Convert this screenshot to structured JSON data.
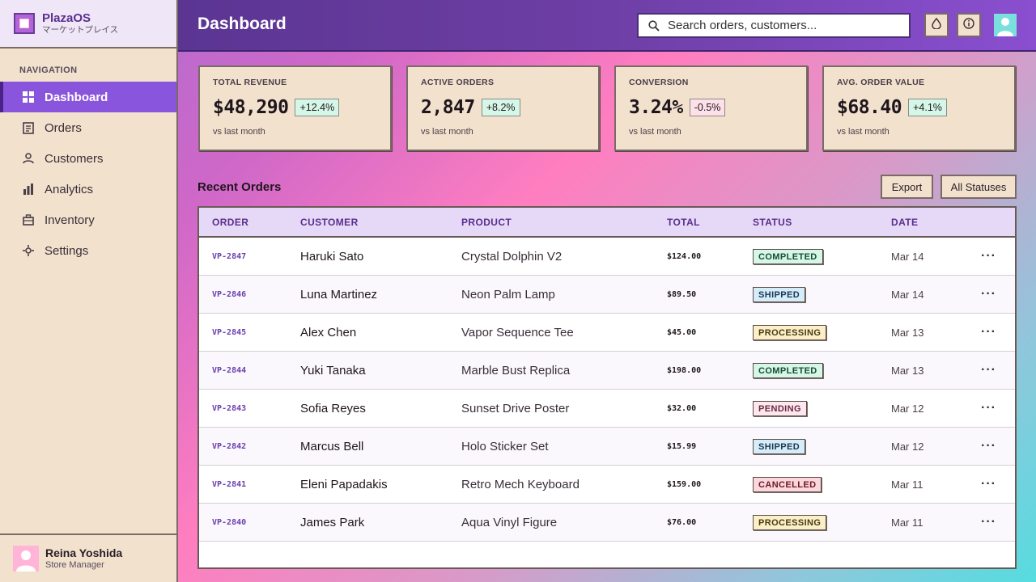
{
  "brand": {
    "name": "PlazaOS",
    "subtitle": "マーケットプレイス"
  },
  "nav": {
    "heading": "NAVIGATION",
    "items": [
      {
        "label": "Dashboard",
        "icon": "grid-icon",
        "active": true
      },
      {
        "label": "Orders",
        "icon": "receipt-icon",
        "active": false
      },
      {
        "label": "Customers",
        "icon": "person-icon",
        "active": false
      },
      {
        "label": "Analytics",
        "icon": "bar-chart-icon",
        "active": false
      },
      {
        "label": "Inventory",
        "icon": "briefcase-icon",
        "active": false
      },
      {
        "label": "Settings",
        "icon": "settings-icon",
        "active": false
      }
    ]
  },
  "user": {
    "name": "Reina Yoshida",
    "role": "Store Manager"
  },
  "header": {
    "title": "Dashboard",
    "search_placeholder": "Search orders, customers...",
    "icons": [
      "droplet-icon",
      "info-icon",
      "user-avatar-icon"
    ]
  },
  "stats": [
    {
      "label": "TOTAL REVENUE",
      "value": "$48,290",
      "delta": "+12.4%",
      "trend": "up",
      "note": "vs last month"
    },
    {
      "label": "ACTIVE ORDERS",
      "value": "2,847",
      "delta": "+8.2%",
      "trend": "up",
      "note": "vs last month"
    },
    {
      "label": "CONVERSION",
      "value": "3.24%",
      "delta": "-0.5%",
      "trend": "down",
      "note": "vs last month"
    },
    {
      "label": "AVG. ORDER VALUE",
      "value": "$68.40",
      "delta": "+4.1%",
      "trend": "up",
      "note": "vs last month"
    }
  ],
  "orders": {
    "title": "Recent Orders",
    "export_label": "Export",
    "filter_label": "All Statuses",
    "columns": [
      "ORDER",
      "CUSTOMER",
      "PRODUCT",
      "TOTAL",
      "STATUS",
      "DATE"
    ],
    "rows": [
      {
        "id": "VP-2847",
        "customer": "Haruki Sato",
        "product": "Crystal Dolphin V2",
        "total": "$124.00",
        "status": "COMPLETED",
        "date": "Mar 14"
      },
      {
        "id": "VP-2846",
        "customer": "Luna Martinez",
        "product": "Neon Palm Lamp",
        "total": "$89.50",
        "status": "SHIPPED",
        "date": "Mar 14"
      },
      {
        "id": "VP-2845",
        "customer": "Alex Chen",
        "product": "Vapor Sequence Tee",
        "total": "$45.00",
        "status": "PROCESSING",
        "date": "Mar 13"
      },
      {
        "id": "VP-2844",
        "customer": "Yuki Tanaka",
        "product": "Marble Bust Replica",
        "total": "$198.00",
        "status": "COMPLETED",
        "date": "Mar 13"
      },
      {
        "id": "VP-2843",
        "customer": "Sofia Reyes",
        "product": "Sunset Drive Poster",
        "total": "$32.00",
        "status": "PENDING",
        "date": "Mar 12"
      },
      {
        "id": "VP-2842",
        "customer": "Marcus Bell",
        "product": "Holo Sticker Set",
        "total": "$15.99",
        "status": "SHIPPED",
        "date": "Mar 12"
      },
      {
        "id": "VP-2841",
        "customer": "Eleni Papadakis",
        "product": "Retro Mech Keyboard",
        "total": "$159.00",
        "status": "CANCELLED",
        "date": "Mar 11"
      },
      {
        "id": "VP-2840",
        "customer": "James Park",
        "product": "Aqua Vinyl Figure",
        "total": "$76.00",
        "status": "PROCESSING",
        "date": "Mar 11"
      }
    ],
    "more_glyph": "···"
  },
  "colors": {
    "accent": "#8a55dd",
    "header": "#5b3592",
    "card_bg": "#f1e1cd",
    "positive": "#d5f7e7",
    "negative": "#fde0e8"
  }
}
